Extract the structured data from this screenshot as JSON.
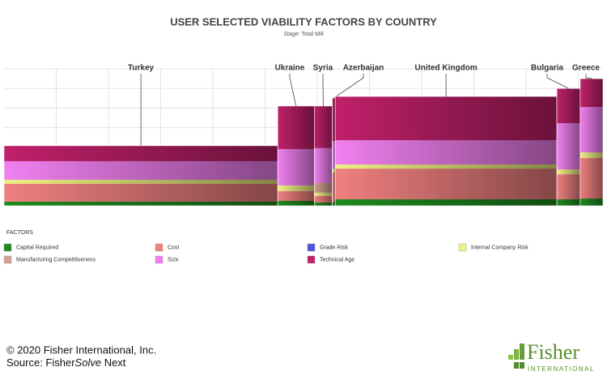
{
  "chart_data": {
    "type": "marimekko",
    "title": "USER SELECTED VIABILITY FACTORS BY COUNTRY",
    "subtitle": "Stage: Total Mill",
    "legend_title": "FACTORS",
    "categories": [
      "Turkey",
      "Ukraine",
      "Syria",
      "Azerbaijan",
      "United Kingdom",
      "Bulgaria",
      "Greece"
    ],
    "widths": [
      45.7,
      6.1,
      3.0,
      0.5,
      37.0,
      3.9,
      3.8
    ],
    "xlim": [
      0,
      100
    ],
    "ylim": [
      0,
      7
    ],
    "yticks": [
      0,
      1,
      2,
      3,
      4,
      5,
      6,
      7
    ],
    "grid": true,
    "series": [
      {
        "name": "Capital Required",
        "color": "#1e8a1e",
        "values": [
          0.21,
          0.25,
          0.17,
          0.2,
          0.33,
          0.33,
          0.37
        ]
      },
      {
        "name": "Cost",
        "color": "#f08080",
        "values": [
          0.91,
          0.5,
          0.33,
          1.5,
          1.57,
          1.28,
          2.07
        ]
      },
      {
        "name": "Grade Risk",
        "color": "#5050e0",
        "values": [
          0,
          0,
          0,
          0,
          0,
          0,
          0
        ]
      },
      {
        "name": "Internal Company Risk",
        "color": "#f0f080",
        "values": [
          0.21,
          0.29,
          0.17,
          0.2,
          0.21,
          0.25,
          0.29
        ]
      },
      {
        "name": "Manufacturing Competitiveness",
        "color": "#d0a090",
        "values": [
          0,
          0,
          0.5,
          0,
          0,
          0,
          0
        ]
      },
      {
        "name": "Size",
        "color": "#f080f0",
        "values": [
          0.95,
          1.86,
          1.78,
          1.4,
          1.24,
          2.36,
          2.32
        ]
      },
      {
        "name": "Technical Age",
        "color": "#c0206a",
        "values": [
          0.79,
          2.2,
          2.15,
          2.2,
          2.24,
          1.78,
          1.45
        ]
      }
    ]
  },
  "footer": {
    "copyright": "© 2020 Fisher International, Inc.",
    "source_prefix": "Source: Fisher",
    "source_italic": "Solve",
    "source_suffix": " Next",
    "logo_name": "Fisher",
    "logo_sub": "INTERNATIONAL"
  }
}
